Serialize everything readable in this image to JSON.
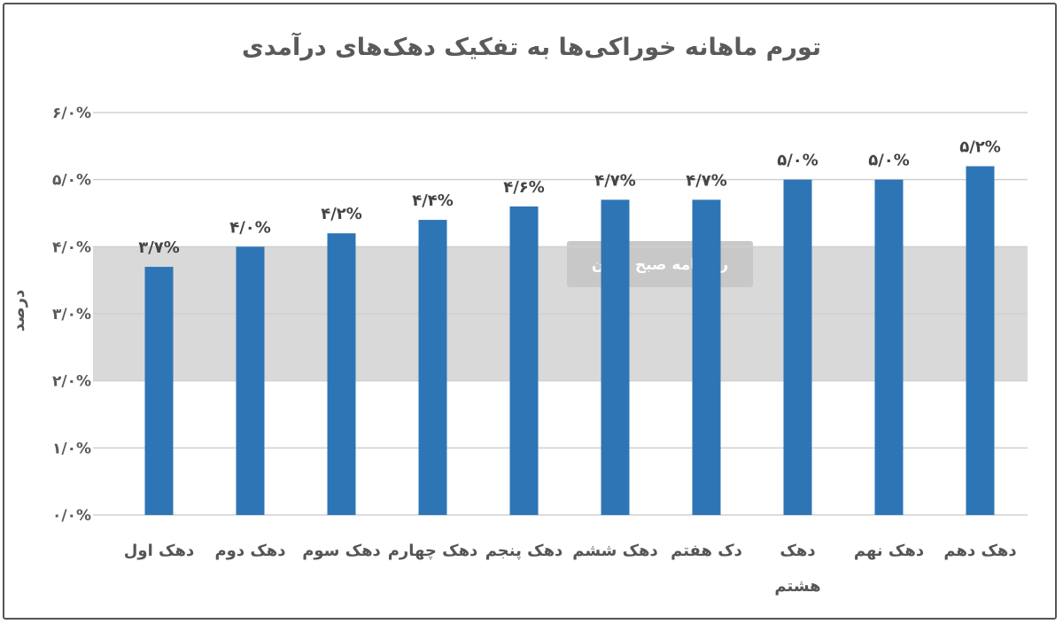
{
  "chart_data": {
    "type": "bar",
    "title": "تورم ماهانه خوراکی‌ها به تفکیک دهک‌های درآمدی",
    "xlabel": "",
    "ylabel": "درصد",
    "categories": [
      "دهک اول",
      "دهک دوم",
      "دهک سوم",
      "دهک چهارم",
      "دهک پنجم",
      "دهک ششم",
      "دک هفتم",
      "دهک هشتم",
      "دهک نهم",
      "دهک دهم"
    ],
    "values": [
      3.7,
      4.0,
      4.2,
      4.4,
      4.6,
      4.7,
      4.7,
      5.0,
      5.0,
      5.2
    ],
    "data_labels": [
      "۳/۷%",
      "۴/۰%",
      "۴/۲%",
      "۴/۴%",
      "۴/۶%",
      "۴/۷%",
      "۴/۷%",
      "۵/۰%",
      "۵/۰%",
      "۵/۲%"
    ],
    "ylim": [
      0,
      6
    ],
    "yticks": [
      0,
      1,
      2,
      3,
      4,
      5,
      6
    ],
    "ytick_labels": [
      "۰/۰%",
      "۱/۰%",
      "۲/۰%",
      "۳/۰%",
      "۴/۰%",
      "۵/۰%",
      "۶/۰%"
    ],
    "grid": true,
    "legend": "none",
    "bar_color": "#2e75b6"
  },
  "watermark": {
    "logo": "دنیای اقتصاد",
    "tagline": "روزنامه صبح ایران"
  }
}
